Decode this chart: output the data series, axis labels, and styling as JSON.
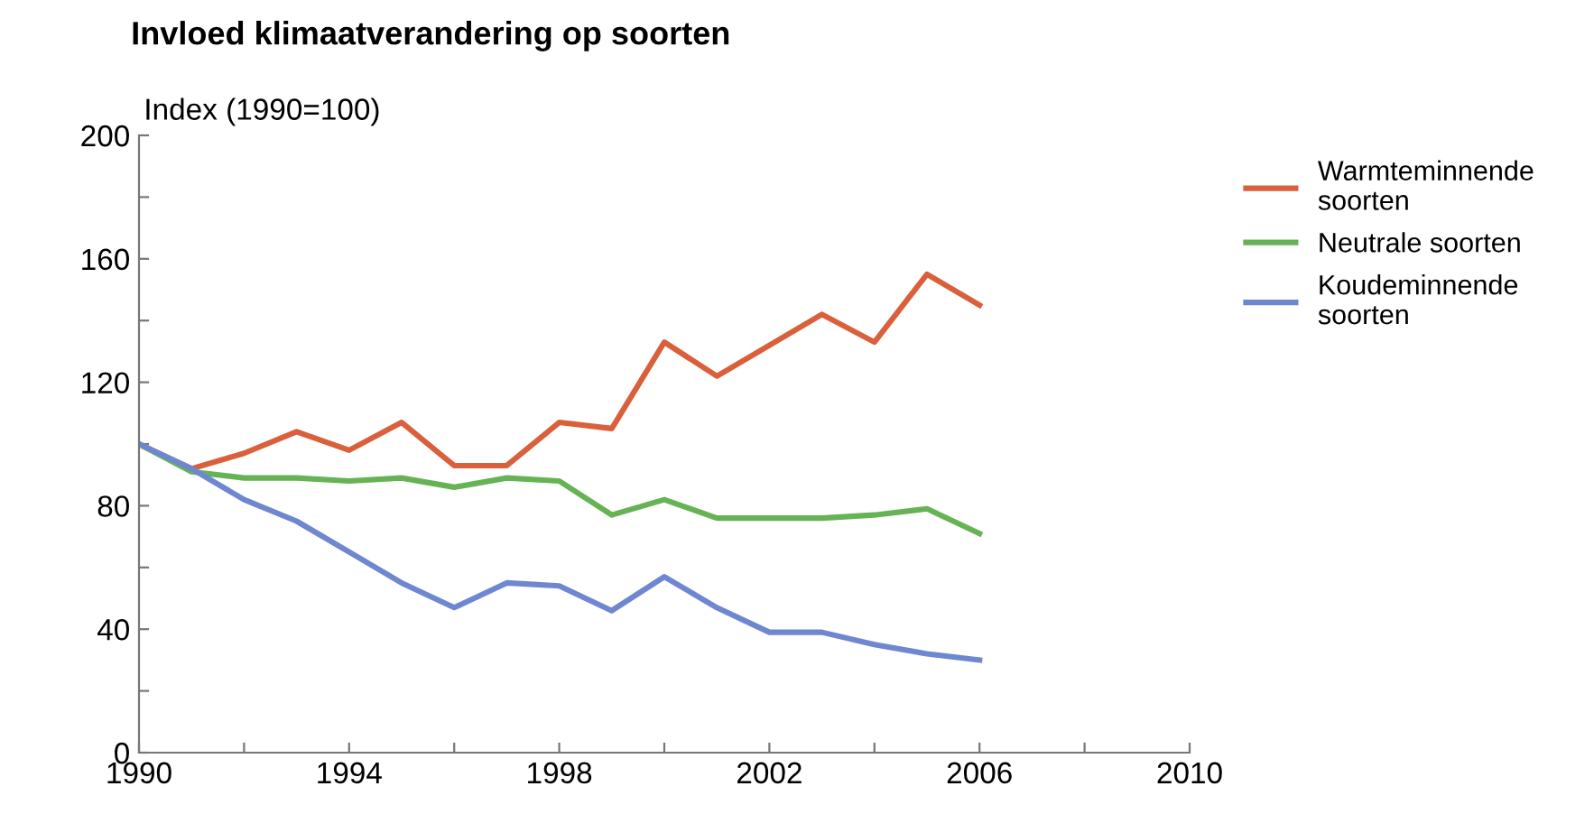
{
  "chart_data": {
    "type": "line",
    "title": "Invloed klimaatverandering op soorten",
    "ylabel": "Index (1990=100)",
    "x": [
      1990,
      1991,
      1992,
      1993,
      1994,
      1995,
      1996,
      1997,
      1998,
      1999,
      2000,
      2001,
      2002,
      2003,
      2004,
      2005,
      2006
    ],
    "series": [
      {
        "name": "Warmteminnende\nsoorten",
        "color": "#d9603b",
        "values": [
          100,
          92,
          97,
          104,
          98,
          107,
          93,
          93,
          107,
          105,
          133,
          122,
          132,
          142,
          133,
          155,
          145
        ]
      },
      {
        "name": "Neutrale soorten",
        "color": "#66b355",
        "values": [
          100,
          91,
          89,
          89,
          88,
          89,
          86,
          89,
          88,
          77,
          82,
          76,
          76,
          76,
          77,
          79,
          71
        ]
      },
      {
        "name": "Koudeminnende\nsoorten",
        "color": "#6f86d0",
        "values": [
          100,
          92,
          82,
          75,
          65,
          55,
          47,
          55,
          54,
          46,
          57,
          47,
          39,
          39,
          35,
          32,
          30
        ]
      }
    ],
    "xlim": [
      1990,
      2010
    ],
    "ylim": [
      0,
      200
    ],
    "xticks": [
      1990,
      {
        "value": 1992,
        "label": null
      },
      1994,
      {
        "value": 1996,
        "label": null
      },
      1998,
      {
        "value": 2000,
        "label": null
      },
      2002,
      {
        "value": 2004,
        "label": null
      },
      2006,
      {
        "value": 2008,
        "label": null
      },
      2010
    ],
    "yticks": [
      0,
      {
        "value": 20,
        "label": null
      },
      40,
      {
        "value": 60,
        "label": null
      },
      80,
      {
        "value": 100,
        "label": null
      },
      120,
      {
        "value": 140,
        "label": null
      },
      160,
      {
        "value": 180,
        "label": null
      },
      200
    ],
    "grid": false,
    "legend": "right",
    "marker": "none",
    "line_style": "solid"
  }
}
